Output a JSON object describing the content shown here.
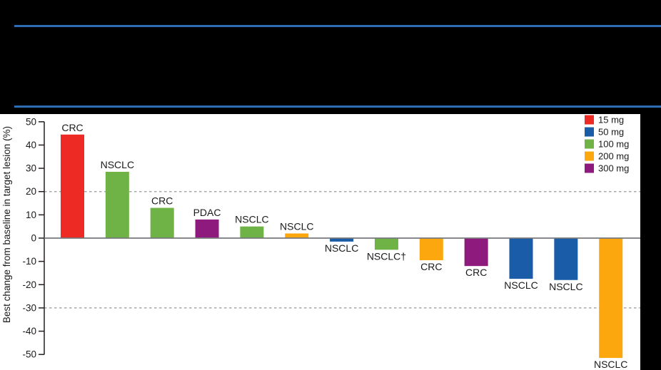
{
  "page": {
    "background": "#000000",
    "divider_color": "#2e6db4"
  },
  "chart_data": {
    "type": "bar",
    "subtype": "waterfall",
    "title": "",
    "ylabel": "Best change from baseline in target lesion (%)",
    "xlabel": "",
    "ylim": [
      -50,
      50
    ],
    "yticks": [
      "50",
      "40",
      "30",
      "20",
      "10",
      "0",
      "-10",
      "-20",
      "-30",
      "-40",
      "-50"
    ],
    "ytick_values": [
      50,
      40,
      30,
      20,
      10,
      0,
      -10,
      -20,
      -30,
      -40,
      -50
    ],
    "reference_lines": [
      20,
      -30
    ],
    "grid": false,
    "legend_position": "top-right",
    "legend": [
      {
        "label": "15 mg",
        "color": "#ee2a24"
      },
      {
        "label": "50 mg",
        "color": "#1b5ca8"
      },
      {
        "label": "100 mg",
        "color": "#6fb245"
      },
      {
        "label": "200 mg",
        "color": "#fba70d"
      },
      {
        "label": "300 mg",
        "color": "#8e1a7e"
      }
    ],
    "bars": [
      {
        "label": "CRC",
        "dose": "15 mg",
        "value": 44.5
      },
      {
        "label": "NSCLC",
        "dose": "100 mg",
        "value": 28.5
      },
      {
        "label": "CRC",
        "dose": "100 mg",
        "value": 13
      },
      {
        "label": "PDAC",
        "dose": "300 mg",
        "value": 8
      },
      {
        "label": "NSCLC",
        "dose": "100 mg",
        "value": 5
      },
      {
        "label": "NSCLC",
        "dose": "200 mg",
        "value": 2
      },
      {
        "label": "NSCLC",
        "dose": "50 mg",
        "value": -1.5
      },
      {
        "label": "NSCLC†",
        "dose": "100 mg",
        "value": -5
      },
      {
        "label": "CRC",
        "dose": "200 mg",
        "value": -9.5
      },
      {
        "label": "CRC",
        "dose": "300 mg",
        "value": -12
      },
      {
        "label": "NSCLC",
        "dose": "50 mg",
        "value": -17.5
      },
      {
        "label": "NSCLC",
        "dose": "50 mg",
        "value": -18
      },
      {
        "label": "NSCLC",
        "dose": "200 mg",
        "value": -51.5
      }
    ],
    "colors": {
      "axis": "#231f20",
      "zero_line": "#77787b",
      "reference_line": "#a6a8ab",
      "label_text": "#1a1a1a"
    }
  }
}
